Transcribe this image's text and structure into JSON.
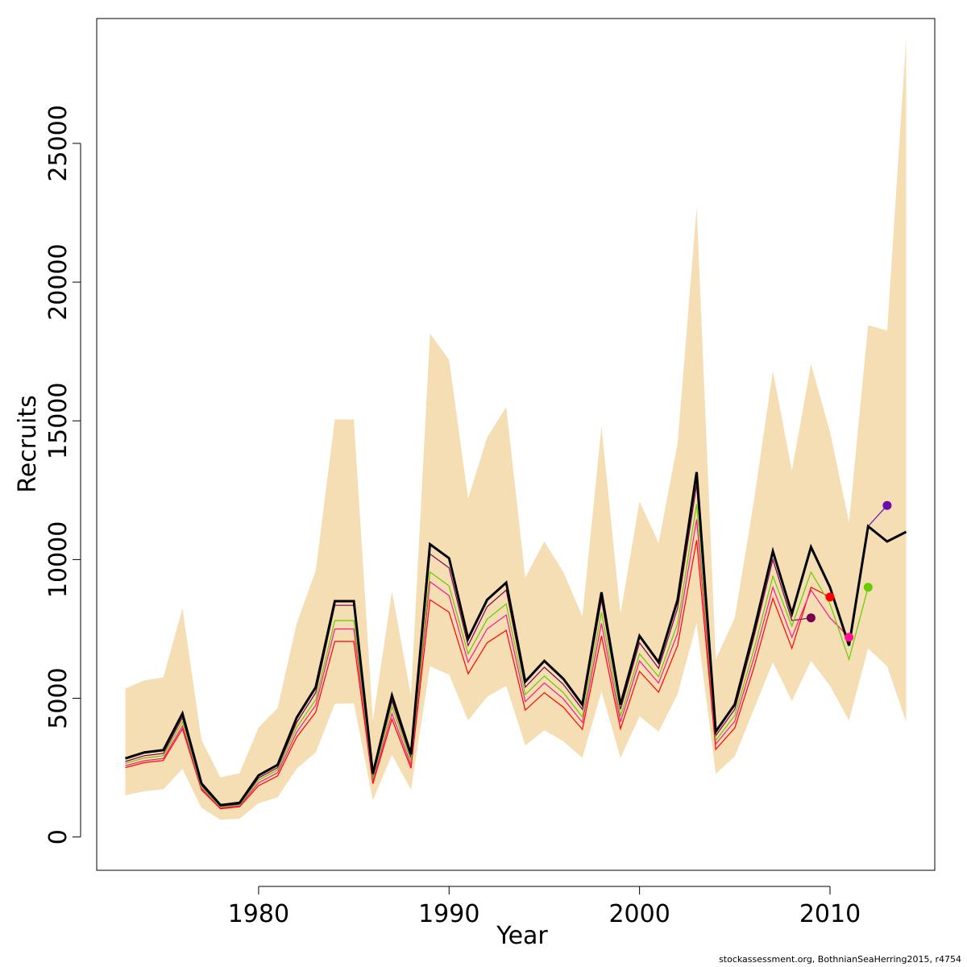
{
  "chart_data": {
    "type": "line",
    "title": "",
    "xlabel": "Year",
    "ylabel": "Recruits",
    "footnote": "stockassessment.org, BothnianSeaHerring2015, r4754",
    "xlim": [
      1971.5,
      2015.5
    ],
    "ylim": [
      -1200,
      29500
    ],
    "x_ticks": [
      1980,
      1990,
      2000,
      2010
    ],
    "y_ticks": [
      0,
      5000,
      10000,
      15000,
      20000,
      25000
    ],
    "x_tick_labels": [
      "1980",
      "1990",
      "2000",
      "2010"
    ],
    "y_tick_labels": [
      "0",
      "5000",
      "10000",
      "15000",
      "20000",
      "25000"
    ],
    "grid": false,
    "colors": {
      "band": "#f5deb3",
      "main": "#000000",
      "retro1": "#7a0050",
      "retro2": "#ff0000",
      "retro3": "#ff1493",
      "retro4": "#66cc00",
      "retro5": "#6a0dad"
    },
    "band": {
      "x": [
        1973,
        1974,
        1975,
        1976,
        1977,
        1978,
        1979,
        1980,
        1981,
        1982,
        1983,
        1984,
        1985,
        1986,
        1987,
        1988,
        1989,
        1990,
        1991,
        1992,
        1993,
        1994,
        1995,
        1996,
        1997,
        1998,
        1999,
        2000,
        2001,
        2002,
        2003,
        2004,
        2005,
        2006,
        2007,
        2008,
        2009,
        2010,
        2011,
        2012,
        2013,
        2014
      ],
      "upper": [
        5350,
        5650,
        5750,
        8250,
        3500,
        2150,
        2300,
        3950,
        4650,
        7700,
        9600,
        15050,
        15050,
        4200,
        8850,
        5100,
        18150,
        17200,
        12200,
        14400,
        15500,
        9350,
        10650,
        9550,
        7950,
        14800,
        8050,
        12100,
        10600,
        14200,
        22700,
        6400,
        7900,
        12100,
        16800,
        13200,
        17050,
        14600,
        11350,
        18450,
        18250,
        28800
      ],
      "lower": [
        1500,
        1650,
        1720,
        2450,
        1050,
        620,
        660,
        1220,
        1430,
        2460,
        3050,
        4800,
        4820,
        1320,
        2960,
        1700,
        6150,
        5850,
        4200,
        5050,
        5450,
        3300,
        3850,
        3450,
        2850,
        5250,
        2850,
        4350,
        3800,
        5150,
        7700,
        2270,
        2900,
        4600,
        6300,
        4900,
        6350,
        5450,
        4200,
        6800,
        6150,
        4150
      ]
    },
    "series": [
      {
        "color": "#000000",
        "x": [
          1973,
          1974,
          1975,
          1976,
          1977,
          1978,
          1979,
          1980,
          1981,
          1982,
          1983,
          1984,
          1985,
          1986,
          1987,
          1988,
          1989,
          1990,
          1991,
          1992,
          1993,
          1994,
          1995,
          1996,
          1997,
          1998,
          1999,
          2000,
          2001,
          2002,
          2003,
          2004,
          2005,
          2006,
          2007,
          2008,
          2009,
          2010,
          2011,
          2012,
          2013,
          2014
        ],
        "y": [
          2830,
          3050,
          3130,
          4450,
          1930,
          1150,
          1230,
          2220,
          2600,
          4300,
          5400,
          8500,
          8500,
          2280,
          5100,
          2980,
          10550,
          10050,
          7150,
          8550,
          9170,
          5600,
          6350,
          5700,
          4770,
          8820,
          4770,
          7250,
          6300,
          8550,
          13150,
          3800,
          4780,
          7430,
          10300,
          8050,
          10450,
          9000,
          6900,
          11200,
          10650,
          11000
        ]
      },
      {
        "color": "#7a0050",
        "x": [
          1973,
          1974,
          1975,
          1976,
          1977,
          1978,
          1979,
          1980,
          1981,
          1982,
          1983,
          1984,
          1985,
          1986,
          1987,
          1988,
          1989,
          1990,
          1991,
          1992,
          1993,
          1994,
          1995,
          1996,
          1997,
          1998,
          1999,
          2000,
          2001,
          2002,
          2003,
          2004,
          2005,
          2006,
          2007,
          2008,
          2009
        ],
        "y": [
          2720,
          2930,
          3010,
          4300,
          1860,
          1110,
          1180,
          2130,
          2500,
          4130,
          5200,
          8350,
          8350,
          2190,
          4900,
          2860,
          10200,
          9700,
          6900,
          8300,
          8900,
          5400,
          6120,
          5500,
          4600,
          8550,
          4600,
          7000,
          6080,
          8250,
          12700,
          3650,
          4600,
          7200,
          10000,
          7800,
          7900
        ]
      },
      {
        "color": "#ff0000",
        "x": [
          1973,
          1974,
          1975,
          1976,
          1977,
          1978,
          1979,
          1980,
          1981,
          1982,
          1983,
          1984,
          1985,
          1986,
          1987,
          1988,
          1989,
          1990,
          1991,
          1992,
          1993,
          1994,
          1995,
          1996,
          1997,
          1998,
          1999,
          2000,
          2001,
          2002,
          2003,
          2004,
          2005,
          2006,
          2007,
          2008,
          2009,
          2010
        ],
        "y": [
          2500,
          2680,
          2760,
          3900,
          1700,
          1020,
          1090,
          1850,
          2200,
          3600,
          4500,
          7050,
          7050,
          1920,
          4250,
          2480,
          8550,
          8100,
          5880,
          7000,
          7450,
          4570,
          5200,
          4680,
          3880,
          7250,
          3900,
          5970,
          5220,
          6900,
          10700,
          3160,
          3930,
          6100,
          8600,
          6800,
          9000,
          8650
        ]
      },
      {
        "color": "#ff1493",
        "x": [
          1973,
          1974,
          1975,
          1976,
          1977,
          1978,
          1979,
          1980,
          1981,
          1982,
          1983,
          1984,
          1985,
          1986,
          1987,
          1988,
          1989,
          1990,
          1991,
          1992,
          1993,
          1994,
          1995,
          1996,
          1997,
          1998,
          1999,
          2000,
          2001,
          2002,
          2003,
          2004,
          2005,
          2006,
          2007,
          2008,
          2009,
          2010,
          2011
        ],
        "y": [
          2570,
          2750,
          2830,
          4000,
          1750,
          1050,
          1120,
          1950,
          2320,
          3780,
          4750,
          7500,
          7500,
          2010,
          4450,
          2600,
          9200,
          8700,
          6300,
          7500,
          8000,
          4880,
          5550,
          4980,
          4130,
          7700,
          4150,
          6350,
          5550,
          7350,
          11450,
          3350,
          4170,
          6450,
          9000,
          7200,
          8900,
          7900,
          7200
        ]
      },
      {
        "color": "#66cc00",
        "x": [
          1973,
          1974,
          1975,
          1976,
          1977,
          1978,
          1979,
          1980,
          1981,
          1982,
          1983,
          1984,
          1985,
          1986,
          1987,
          1988,
          1989,
          1990,
          1991,
          1992,
          1993,
          1994,
          1995,
          1996,
          1997,
          1998,
          1999,
          2000,
          2001,
          2002,
          2003,
          2004,
          2005,
          2006,
          2007,
          2008,
          2009,
          2010,
          2011,
          2012
        ],
        "y": [
          2650,
          2850,
          2930,
          4150,
          1800,
          1080,
          1150,
          2050,
          2420,
          3950,
          4950,
          7800,
          7800,
          2100,
          4700,
          2730,
          9550,
          9050,
          6600,
          7850,
          8400,
          5130,
          5800,
          5200,
          4330,
          8100,
          4350,
          6600,
          5780,
          7700,
          12000,
          3480,
          4380,
          6750,
          9400,
          7600,
          9550,
          8400,
          6400,
          9000
        ]
      },
      {
        "color": "#6a0dad",
        "x": [
          2012,
          2013
        ],
        "y": [
          11200,
          11950
        ]
      }
    ],
    "endpoints": [
      {
        "year": 2009,
        "value": 7900,
        "color": "#7a0050"
      },
      {
        "year": 2010,
        "value": 8650,
        "color": "#ff0000"
      },
      {
        "year": 2011,
        "value": 7200,
        "color": "#ff1493"
      },
      {
        "year": 2012,
        "value": 9000,
        "color": "#66cc00"
      },
      {
        "year": 2013,
        "value": 11950,
        "color": "#6a0dad"
      }
    ]
  }
}
